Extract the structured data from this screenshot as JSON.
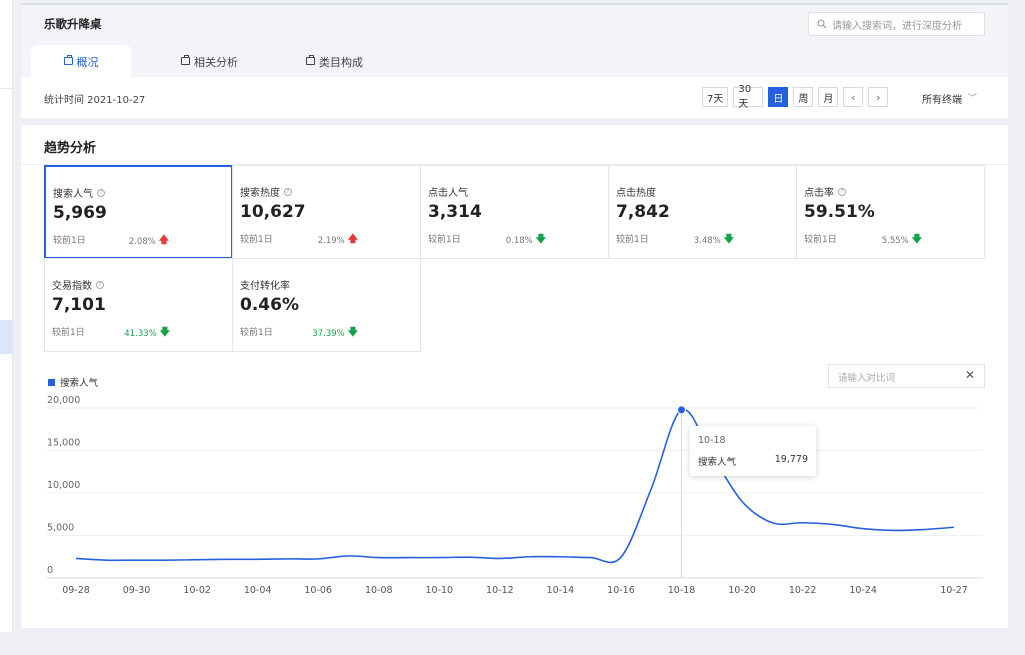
{
  "app": {
    "title": "乐歌升降桌",
    "search_placeholder": "请输入搜索词，进行深度分析"
  },
  "tabs": [
    {
      "label": "概况",
      "active": true
    },
    {
      "label": "相关分析",
      "active": false
    },
    {
      "label": "类目构成",
      "active": false
    }
  ],
  "filters": {
    "stat_time": "统计时间 2021-10-27",
    "periods": [
      "7天",
      "30天",
      "日",
      "周",
      "月"
    ],
    "active_period": "日",
    "terminal": "所有终端"
  },
  "section_title": "趋势分析",
  "metrics": [
    {
      "label": "搜索人气",
      "help": true,
      "value": "5,969",
      "compare": "较前1日",
      "change": "2.08%",
      "direction": "up",
      "active": true
    },
    {
      "label": "搜索热度",
      "help": true,
      "value": "10,627",
      "compare": "较前1日",
      "change": "2.19%",
      "direction": "up",
      "active": false
    },
    {
      "label": "点击人气",
      "help": false,
      "value": "3,314",
      "compare": "较前1日",
      "change": "0.18%",
      "direction": "down",
      "active": false
    },
    {
      "label": "点击热度",
      "help": false,
      "value": "7,842",
      "compare": "较前1日",
      "change": "3.48%",
      "direction": "down",
      "active": false
    },
    {
      "label": "点击率",
      "help": true,
      "value": "59.51%",
      "compare": "较前1日",
      "change": "5.55%",
      "direction": "down",
      "active": false
    },
    {
      "label": "交易指数",
      "help": true,
      "value": "7,101",
      "compare": "较前1日",
      "change": "41.33%",
      "direction": "down",
      "active": false
    },
    {
      "label": "支付转化率",
      "help": false,
      "value": "0.46%",
      "compare": "较前1日",
      "change": "37.39%",
      "direction": "down",
      "active": false
    }
  ],
  "compare_input": {
    "placeholder": "请输入对比词",
    "clear": "✕"
  },
  "tooltip": {
    "date": "10-18",
    "name": "搜索人气",
    "value": "19,779"
  },
  "colors": {
    "accent": "#2660e0",
    "up": "#e53935",
    "down": "#15a34a"
  },
  "chart_data": {
    "type": "line",
    "title": "",
    "xlabel": "",
    "ylabel": "",
    "ylim": [
      0,
      20000
    ],
    "yticks": [
      "0",
      "5,000",
      "10,000",
      "15,000",
      "20,000"
    ],
    "x": [
      "09-28",
      "09-29",
      "09-30",
      "10-01",
      "10-02",
      "10-03",
      "10-04",
      "10-05",
      "10-06",
      "10-07",
      "10-08",
      "10-09",
      "10-10",
      "10-11",
      "10-12",
      "10-13",
      "10-14",
      "10-15",
      "10-16",
      "10-17",
      "10-18",
      "10-19",
      "10-20",
      "10-21",
      "10-22",
      "10-23",
      "10-24",
      "10-25",
      "10-26",
      "10-27"
    ],
    "xtick_labels": [
      "09-28",
      "09-30",
      "10-02",
      "10-04",
      "10-06",
      "10-08",
      "10-10",
      "10-12",
      "10-14",
      "10-16",
      "10-18",
      "10-20",
      "10-22",
      "10-24",
      "10-27"
    ],
    "series": [
      {
        "name": "搜索人气",
        "values": [
          2300,
          2100,
          2100,
          2100,
          2150,
          2200,
          2200,
          2250,
          2250,
          2600,
          2400,
          2400,
          2400,
          2450,
          2300,
          2500,
          2500,
          2400,
          2450,
          10500,
          19779,
          14500,
          9000,
          6500,
          6500,
          6300,
          5800,
          5600,
          5700,
          5969
        ]
      }
    ],
    "highlight": {
      "x": "10-18",
      "value": 19779
    },
    "grid": true,
    "legend": "top-left"
  }
}
